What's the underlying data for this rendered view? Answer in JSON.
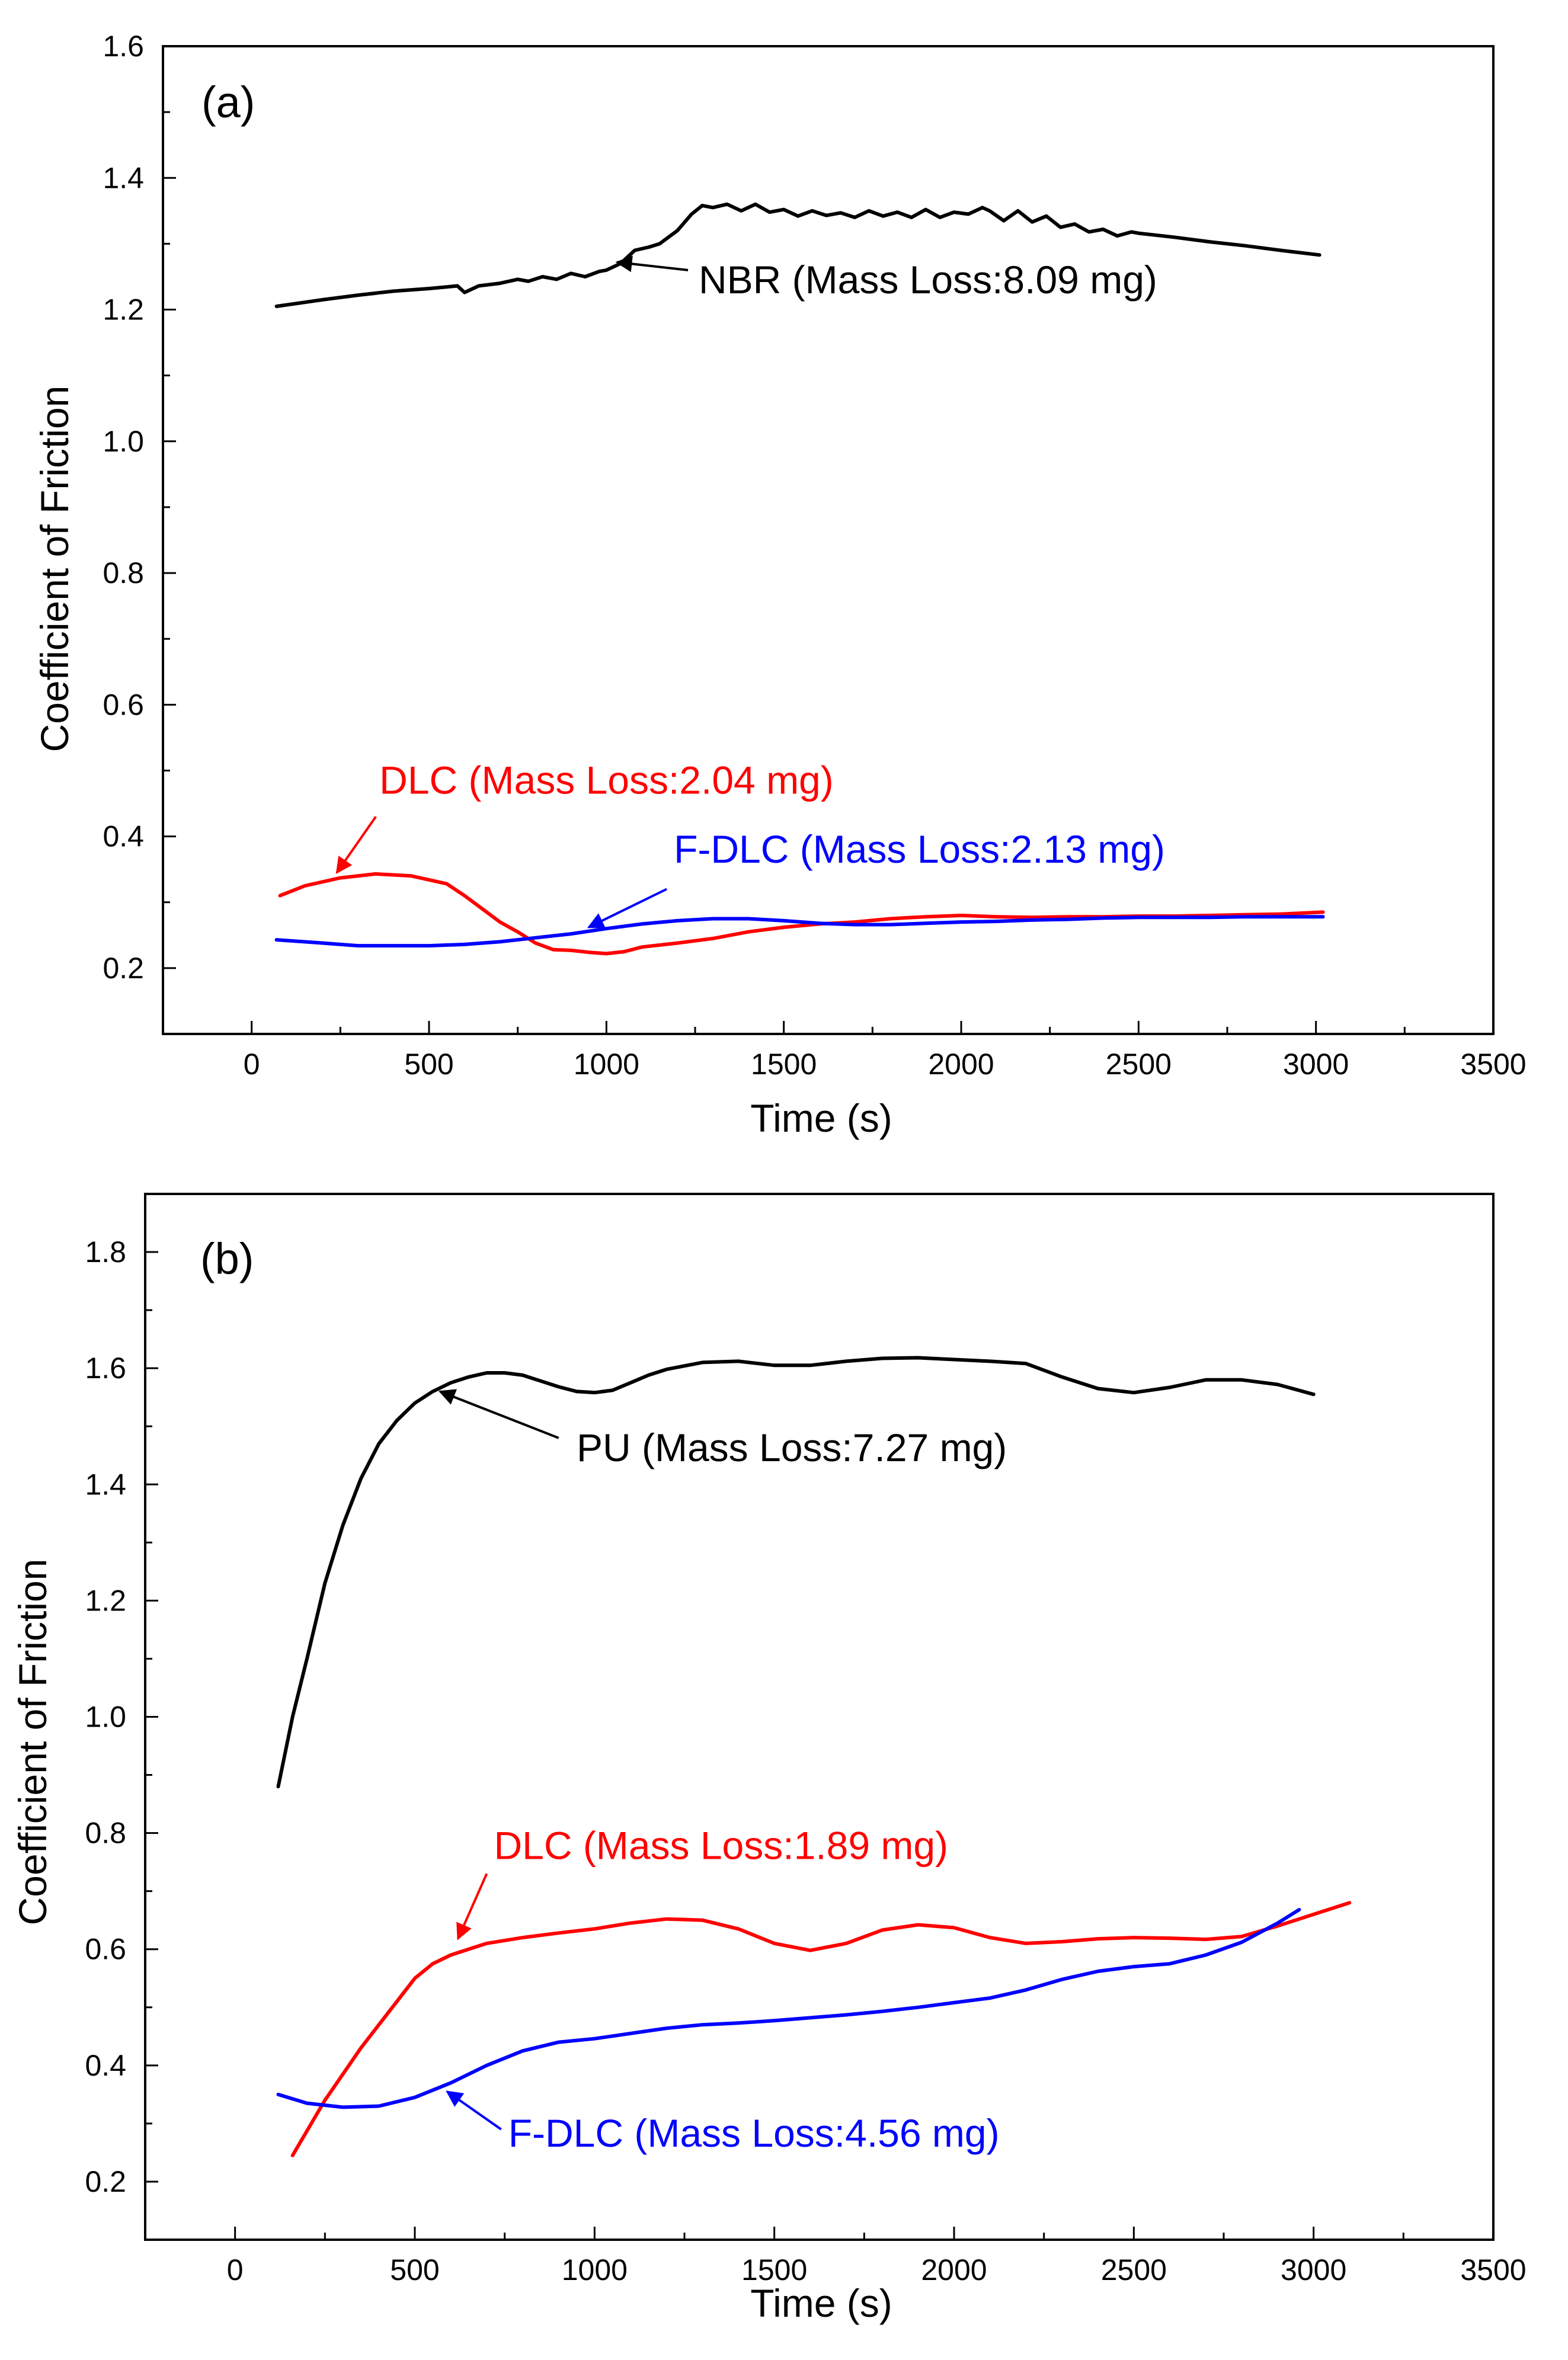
{
  "chart_data": [
    {
      "panel_label": "(a)",
      "type": "line",
      "xlabel": "Time (s)",
      "ylabel": "Coefficient of Friction",
      "xlim": [
        -250,
        3500
      ],
      "ylim": [
        0.1,
        1.6
      ],
      "xticks": [
        0,
        500,
        1000,
        1500,
        2000,
        2500,
        3000,
        3500
      ],
      "yticks": [
        0.2,
        0.4,
        0.6,
        0.8,
        1.0,
        1.2,
        1.4,
        1.6
      ],
      "xtick_labels": [
        "0",
        "500",
        "1000",
        "1500",
        "2000",
        "2500",
        "3000",
        "3500"
      ],
      "ytick_labels": [
        "0.2",
        "0.4",
        "0.6",
        "0.8",
        "1.0",
        "1.2",
        "1.4",
        "1.6"
      ],
      "series": [
        {
          "name": "NBR",
          "color": "#000000",
          "x": [
            70,
            200,
            300,
            400,
            500,
            580,
            600,
            640,
            700,
            750,
            780,
            820,
            860,
            900,
            940,
            980,
            1000,
            1040,
            1080,
            1120,
            1150,
            1200,
            1240,
            1270,
            1300,
            1340,
            1380,
            1420,
            1460,
            1500,
            1540,
            1580,
            1620,
            1660,
            1700,
            1740,
            1780,
            1820,
            1860,
            1900,
            1940,
            1980,
            2020,
            2060,
            2080,
            2120,
            2160,
            2200,
            2240,
            2280,
            2320,
            2360,
            2400,
            2440,
            2480,
            2500,
            2600,
            2700,
            2800,
            2900,
            3010
          ],
          "y": [
            1.205,
            1.215,
            1.222,
            1.228,
            1.232,
            1.236,
            1.226,
            1.236,
            1.24,
            1.246,
            1.243,
            1.25,
            1.246,
            1.255,
            1.25,
            1.258,
            1.26,
            1.27,
            1.29,
            1.295,
            1.3,
            1.32,
            1.345,
            1.358,
            1.355,
            1.36,
            1.35,
            1.36,
            1.348,
            1.352,
            1.342,
            1.35,
            1.343,
            1.347,
            1.34,
            1.35,
            1.342,
            1.348,
            1.34,
            1.352,
            1.34,
            1.348,
            1.345,
            1.355,
            1.35,
            1.335,
            1.35,
            1.333,
            1.342,
            1.325,
            1.33,
            1.318,
            1.322,
            1.312,
            1.318,
            1.316,
            1.31,
            1.303,
            1.297,
            1.29,
            1.283
          ]
        },
        {
          "name": "DLC",
          "color": "#ff0000",
          "x": [
            80,
            150,
            250,
            350,
            450,
            550,
            600,
            650,
            700,
            750,
            800,
            850,
            900,
            950,
            1000,
            1050,
            1100,
            1200,
            1300,
            1400,
            1500,
            1600,
            1700,
            1800,
            1900,
            2000,
            2100,
            2200,
            2300,
            2400,
            2500,
            2600,
            2700,
            2800,
            2900,
            3020
          ],
          "y": [
            0.31,
            0.325,
            0.337,
            0.343,
            0.34,
            0.328,
            0.31,
            0.29,
            0.27,
            0.255,
            0.238,
            0.228,
            0.227,
            0.224,
            0.222,
            0.225,
            0.232,
            0.238,
            0.245,
            0.255,
            0.262,
            0.267,
            0.27,
            0.275,
            0.278,
            0.28,
            0.278,
            0.277,
            0.278,
            0.278,
            0.279,
            0.279,
            0.28,
            0.281,
            0.282,
            0.285
          ]
        },
        {
          "name": "F-DLC",
          "color": "#0000ff",
          "x": [
            70,
            200,
            300,
            400,
            500,
            600,
            700,
            800,
            900,
            1000,
            1100,
            1200,
            1300,
            1400,
            1500,
            1600,
            1700,
            1800,
            1900,
            2000,
            2100,
            2200,
            2300,
            2400,
            2500,
            2600,
            2700,
            2800,
            2900,
            3020
          ],
          "y": [
            0.243,
            0.238,
            0.234,
            0.234,
            0.234,
            0.236,
            0.24,
            0.246,
            0.252,
            0.26,
            0.267,
            0.272,
            0.275,
            0.275,
            0.272,
            0.268,
            0.266,
            0.266,
            0.268,
            0.27,
            0.271,
            0.273,
            0.274,
            0.276,
            0.277,
            0.277,
            0.277,
            0.278,
            0.278,
            0.278
          ]
        }
      ],
      "annotations": [
        {
          "text": "NBR (Mass Loss:8.09 mg)",
          "color": "#000000",
          "text_x": 1260,
          "text_y": 1.225,
          "arrow_from": [
            1230,
            1.26
          ],
          "arrow_to": [
            1030,
            1.272
          ]
        },
        {
          "text": "DLC (Mass Loss:2.04 mg)",
          "color": "#ff0000",
          "text_x": 360,
          "text_y": 0.465,
          "arrow_from": [
            350,
            0.43
          ],
          "arrow_to": [
            240,
            0.345
          ]
        },
        {
          "text": "F-DLC (Mass Loss:2.13 mg)",
          "color": "#0000ff",
          "text_x": 1190,
          "text_y": 0.36,
          "arrow_from": [
            1170,
            0.32
          ],
          "arrow_to": [
            950,
            0.262
          ]
        }
      ]
    },
    {
      "panel_label": "(b)",
      "type": "line",
      "xlabel": "Time (s)",
      "ylabel": "Coefficient of Friction",
      "xlim": [
        -250,
        3500
      ],
      "ylim": [
        0.1,
        1.9
      ],
      "xticks": [
        0,
        500,
        1000,
        1500,
        2000,
        2500,
        3000,
        3500
      ],
      "yticks": [
        0.2,
        0.4,
        0.6,
        0.8,
        1.0,
        1.2,
        1.4,
        1.6,
        1.8
      ],
      "xtick_labels": [
        "0",
        "500",
        "1000",
        "1500",
        "2000",
        "2500",
        "3000",
        "3500"
      ],
      "ytick_labels": [
        "0.2",
        "0.4",
        "0.6",
        "0.8",
        "1.0",
        "1.2",
        "1.4",
        "1.6",
        "1.8"
      ],
      "series": [
        {
          "name": "PU",
          "color": "#000000",
          "x": [
            120,
            160,
            200,
            250,
            300,
            350,
            400,
            450,
            500,
            550,
            600,
            650,
            700,
            750,
            800,
            850,
            900,
            950,
            1000,
            1050,
            1100,
            1150,
            1200,
            1300,
            1400,
            1500,
            1600,
            1700,
            1800,
            1900,
            2000,
            2100,
            2200,
            2300,
            2400,
            2500,
            2600,
            2700,
            2800,
            2900,
            3000
          ],
          "y": [
            0.88,
            1.0,
            1.1,
            1.23,
            1.33,
            1.41,
            1.47,
            1.51,
            1.54,
            1.56,
            1.575,
            1.585,
            1.592,
            1.592,
            1.588,
            1.578,
            1.568,
            1.56,
            1.558,
            1.562,
            1.575,
            1.588,
            1.598,
            1.61,
            1.612,
            1.605,
            1.605,
            1.612,
            1.617,
            1.618,
            1.615,
            1.612,
            1.608,
            1.585,
            1.565,
            1.558,
            1.567,
            1.58,
            1.58,
            1.572,
            1.555
          ]
        },
        {
          "name": "DLC",
          "color": "#ff0000",
          "x": [
            160,
            250,
            350,
            450,
            500,
            550,
            600,
            700,
            800,
            900,
            1000,
            1100,
            1200,
            1300,
            1400,
            1500,
            1600,
            1700,
            1800,
            1900,
            2000,
            2100,
            2200,
            2300,
            2400,
            2500,
            2600,
            2700,
            2800,
            2900,
            3000,
            3100
          ],
          "y": [
            0.245,
            0.34,
            0.43,
            0.51,
            0.55,
            0.575,
            0.59,
            0.61,
            0.62,
            0.628,
            0.635,
            0.645,
            0.652,
            0.65,
            0.635,
            0.61,
            0.598,
            0.61,
            0.633,
            0.642,
            0.637,
            0.62,
            0.61,
            0.613,
            0.618,
            0.62,
            0.619,
            0.617,
            0.622,
            0.64,
            0.66,
            0.68
          ]
        },
        {
          "name": "F-DLC",
          "color": "#0000ff",
          "x": [
            120,
            200,
            300,
            400,
            500,
            600,
            700,
            800,
            900,
            1000,
            1100,
            1200,
            1300,
            1400,
            1500,
            1600,
            1700,
            1800,
            1900,
            2000,
            2100,
            2200,
            2300,
            2400,
            2500,
            2600,
            2700,
            2800,
            2900,
            2960
          ],
          "y": [
            0.35,
            0.335,
            0.328,
            0.33,
            0.345,
            0.37,
            0.4,
            0.425,
            0.44,
            0.446,
            0.455,
            0.464,
            0.47,
            0.473,
            0.477,
            0.482,
            0.487,
            0.493,
            0.5,
            0.508,
            0.516,
            0.53,
            0.548,
            0.562,
            0.57,
            0.575,
            0.59,
            0.612,
            0.645,
            0.668
          ]
        }
      ],
      "annotations": [
        {
          "text": "PU (Mass Loss:7.27 mg)",
          "color": "#000000",
          "text_x": 950,
          "text_y": 1.44,
          "arrow_from": [
            900,
            1.48
          ],
          "arrow_to": [
            570,
            1.56
          ]
        },
        {
          "text": "DLC (Mass Loss:1.89 mg)",
          "color": "#ff0000",
          "text_x": 720,
          "text_y": 0.755,
          "arrow_from": [
            700,
            0.73
          ],
          "arrow_to": [
            620,
            0.618
          ]
        },
        {
          "text": "F-DLC (Mass Loss:4.56 mg)",
          "color": "#0000ff",
          "text_x": 760,
          "text_y": 0.26,
          "arrow_from": [
            740,
            0.29
          ],
          "arrow_to": [
            590,
            0.355
          ]
        }
      ]
    }
  ]
}
